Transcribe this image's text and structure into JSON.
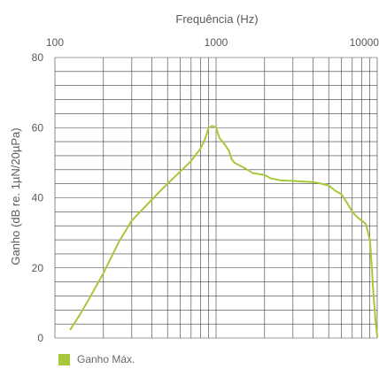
{
  "chart_data": {
    "type": "line",
    "title": "",
    "xlabel": "Frequência (Hz)",
    "ylabel": "Ganho (dB re. 1µN/20µPa)",
    "x_scale": "log",
    "xlim": [
      100,
      10000
    ],
    "ylim": [
      0,
      80
    ],
    "x_ticks": [
      100,
      1000,
      10000
    ],
    "x_tick_labels": [
      "100",
      "1000",
      "10000"
    ],
    "y_ticks": [
      0,
      20,
      40,
      60,
      80
    ],
    "y_tick_labels": [
      "0",
      "20",
      "40",
      "60",
      "80"
    ],
    "grid": true,
    "legend_position": "bottom-left",
    "series": [
      {
        "name": "Ganho Máx.",
        "color": "#a6c83a",
        "x": [
          125,
          140,
          160,
          200,
          250,
          300,
          400,
          500,
          600,
          700,
          800,
          850,
          900,
          950,
          1000,
          1050,
          1100,
          1200,
          1250,
          1300,
          1500,
          1700,
          2000,
          2200,
          2500,
          3000,
          3500,
          4000,
          4500,
          5000,
          5500,
          6000,
          6500,
          7000,
          7500,
          8000,
          8500,
          9000,
          9200,
          9500,
          9800,
          10000
        ],
        "values": [
          2.5,
          6,
          10.5,
          18.5,
          27.5,
          33.5,
          39.5,
          44,
          47.5,
          50.5,
          54,
          56.5,
          60,
          60.5,
          60,
          57,
          56,
          53.5,
          51,
          50,
          48.5,
          47,
          46.5,
          45.5,
          45,
          44.8,
          44.6,
          44.5,
          44,
          43.5,
          42,
          41,
          38.5,
          36,
          34.5,
          33.5,
          32.5,
          28,
          22,
          12,
          4,
          0.5
        ]
      }
    ]
  }
}
